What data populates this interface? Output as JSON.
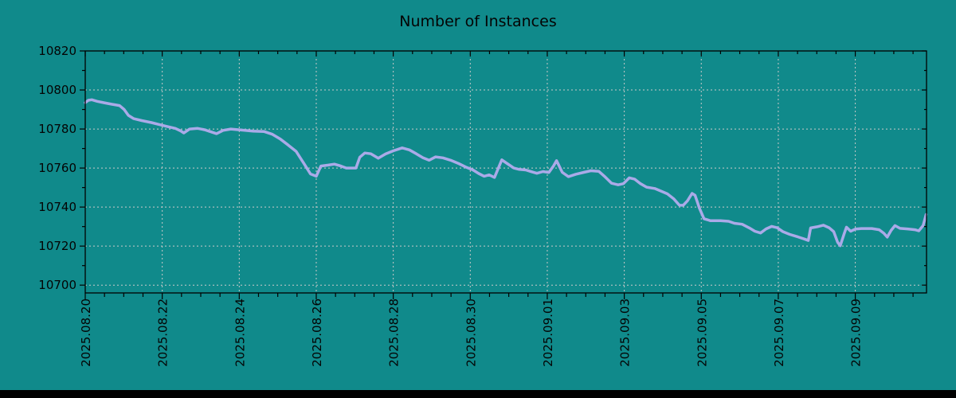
{
  "window": {
    "background_color": "#108a8b",
    "bottom_bar_color": "#000000"
  },
  "chart_data": {
    "type": "line",
    "title": "Number of Instances",
    "grid": {
      "on": true,
      "color": "#c9c9c9",
      "style": "dashed",
      "frame_color": "#000000",
      "text_color": "#040404"
    },
    "legend": "none",
    "x_axis": {
      "label": "",
      "unit": "date",
      "range_days": [
        0,
        21.85
      ],
      "major_tick_interval_days": 2,
      "minor_tick_interval_days": 0.5,
      "ticks": [
        {
          "label": "2025.08.20",
          "day": 0
        },
        {
          "label": "2025.08.22",
          "day": 2
        },
        {
          "label": "2025.08.24",
          "day": 4
        },
        {
          "label": "2025.08.26",
          "day": 6
        },
        {
          "label": "2025.08.28",
          "day": 8
        },
        {
          "label": "2025.08.30",
          "day": 10
        },
        {
          "label": "2025.09.01",
          "day": 12
        },
        {
          "label": "2025.09.03",
          "day": 14
        },
        {
          "label": "2025.09.05",
          "day": 16
        },
        {
          "label": "2025.09.07",
          "day": 18
        },
        {
          "label": "2025.09.09",
          "day": 20
        }
      ]
    },
    "y_axis": {
      "label": "",
      "range": [
        10696,
        10820
      ],
      "major_tick_interval": 20,
      "minor_tick_interval": 10,
      "ticks": [
        {
          "label": "10700",
          "value": 10700
        },
        {
          "label": "10720",
          "value": 10720
        },
        {
          "label": "10740",
          "value": 10740
        },
        {
          "label": "10760",
          "value": 10760
        },
        {
          "label": "10780",
          "value": 10780
        },
        {
          "label": "10800",
          "value": 10800
        },
        {
          "label": "10820",
          "value": 10820
        }
      ]
    },
    "series": [
      {
        "name": "instances",
        "color": "#aaaae8",
        "line_width": 3.5,
        "points": [
          [
            0.0,
            10793.5
          ],
          [
            0.08,
            10794.7
          ],
          [
            0.17,
            10795.0
          ],
          [
            0.31,
            10794.2
          ],
          [
            0.48,
            10793.5
          ],
          [
            0.68,
            10792.7
          ],
          [
            0.89,
            10792.0
          ],
          [
            1.01,
            10790.0
          ],
          [
            1.12,
            10787.0
          ],
          [
            1.26,
            10785.3
          ],
          [
            1.47,
            10784.3
          ],
          [
            1.72,
            10783.3
          ],
          [
            1.92,
            10782.3
          ],
          [
            2.13,
            10781.3
          ],
          [
            2.34,
            10780.3
          ],
          [
            2.48,
            10779.0
          ],
          [
            2.56,
            10778.0
          ],
          [
            2.71,
            10780.0
          ],
          [
            2.92,
            10780.3
          ],
          [
            3.1,
            10779.6
          ],
          [
            3.27,
            10778.5
          ],
          [
            3.41,
            10777.6
          ],
          [
            3.58,
            10779.3
          ],
          [
            3.78,
            10780.0
          ],
          [
            4.09,
            10779.4
          ],
          [
            4.36,
            10778.9
          ],
          [
            4.65,
            10778.7
          ],
          [
            4.86,
            10777.3
          ],
          [
            5.07,
            10774.8
          ],
          [
            5.27,
            10771.8
          ],
          [
            5.48,
            10768.5
          ],
          [
            5.69,
            10762.0
          ],
          [
            5.85,
            10757.0
          ],
          [
            6.0,
            10755.8
          ],
          [
            6.12,
            10761.0
          ],
          [
            6.31,
            10761.5
          ],
          [
            6.47,
            10762.0
          ],
          [
            6.64,
            10761.0
          ],
          [
            6.78,
            10760.0
          ],
          [
            7.03,
            10760.0
          ],
          [
            7.13,
            10765.5
          ],
          [
            7.26,
            10767.7
          ],
          [
            7.42,
            10767.3
          ],
          [
            7.61,
            10765.0
          ],
          [
            7.8,
            10767.2
          ],
          [
            8.0,
            10768.8
          ],
          [
            8.23,
            10770.3
          ],
          [
            8.42,
            10769.3
          ],
          [
            8.6,
            10767.3
          ],
          [
            8.77,
            10765.3
          ],
          [
            8.93,
            10764.0
          ],
          [
            9.1,
            10765.7
          ],
          [
            9.29,
            10765.2
          ],
          [
            9.49,
            10764.0
          ],
          [
            9.7,
            10762.3
          ],
          [
            9.91,
            10760.3
          ],
          [
            10.07,
            10759.0
          ],
          [
            10.22,
            10757.2
          ],
          [
            10.36,
            10755.8
          ],
          [
            10.49,
            10756.5
          ],
          [
            10.63,
            10755.2
          ],
          [
            10.73,
            10760.0
          ],
          [
            10.82,
            10764.2
          ],
          [
            10.96,
            10762.3
          ],
          [
            11.13,
            10760.0
          ],
          [
            11.27,
            10759.3
          ],
          [
            11.44,
            10759.0
          ],
          [
            11.56,
            10758.3
          ],
          [
            11.73,
            10757.3
          ],
          [
            11.89,
            10758.2
          ],
          [
            12.04,
            10757.7
          ],
          [
            12.16,
            10761.0
          ],
          [
            12.24,
            10763.8
          ],
          [
            12.39,
            10757.8
          ],
          [
            12.55,
            10755.6
          ],
          [
            12.74,
            10756.8
          ],
          [
            12.95,
            10757.8
          ],
          [
            13.13,
            10758.6
          ],
          [
            13.34,
            10758.3
          ],
          [
            13.5,
            10755.5
          ],
          [
            13.67,
            10752.2
          ],
          [
            13.84,
            10751.4
          ],
          [
            13.98,
            10752.0
          ],
          [
            14.13,
            10755.0
          ],
          [
            14.27,
            10754.3
          ],
          [
            14.42,
            10752.0
          ],
          [
            14.58,
            10750.2
          ],
          [
            14.79,
            10749.5
          ],
          [
            14.95,
            10748.2
          ],
          [
            15.12,
            10746.8
          ],
          [
            15.28,
            10744.3
          ],
          [
            15.43,
            10741.0
          ],
          [
            15.53,
            10740.9
          ],
          [
            15.64,
            10743.2
          ],
          [
            15.76,
            10747.0
          ],
          [
            15.84,
            10746.0
          ],
          [
            15.95,
            10739.5
          ],
          [
            16.07,
            10734.0
          ],
          [
            16.24,
            10733.0
          ],
          [
            16.5,
            10733.0
          ],
          [
            16.71,
            10732.7
          ],
          [
            16.86,
            10731.7
          ],
          [
            17.06,
            10731.2
          ],
          [
            17.25,
            10729.3
          ],
          [
            17.39,
            10727.6
          ],
          [
            17.54,
            10726.7
          ],
          [
            17.68,
            10728.8
          ],
          [
            17.83,
            10730.1
          ],
          [
            17.97,
            10729.4
          ],
          [
            18.12,
            10727.4
          ],
          [
            18.3,
            10726.0
          ],
          [
            18.51,
            10724.7
          ],
          [
            18.68,
            10723.6
          ],
          [
            18.78,
            10722.9
          ],
          [
            18.84,
            10729.3
          ],
          [
            19.01,
            10729.9
          ],
          [
            19.17,
            10730.7
          ],
          [
            19.32,
            10729.4
          ],
          [
            19.44,
            10727.4
          ],
          [
            19.54,
            10722.0
          ],
          [
            19.61,
            10720.2
          ],
          [
            19.71,
            10726.3
          ],
          [
            19.77,
            10729.7
          ],
          [
            19.88,
            10727.6
          ],
          [
            20.0,
            10728.7
          ],
          [
            20.16,
            10729.0
          ],
          [
            20.43,
            10729.0
          ],
          [
            20.62,
            10728.4
          ],
          [
            20.74,
            10726.6
          ],
          [
            20.83,
            10724.6
          ],
          [
            20.93,
            10728.0
          ],
          [
            21.03,
            10730.5
          ],
          [
            21.16,
            10729.1
          ],
          [
            21.36,
            10728.8
          ],
          [
            21.55,
            10728.4
          ],
          [
            21.65,
            10727.8
          ],
          [
            21.76,
            10730.5
          ],
          [
            21.84,
            10736.2
          ]
        ]
      }
    ]
  }
}
